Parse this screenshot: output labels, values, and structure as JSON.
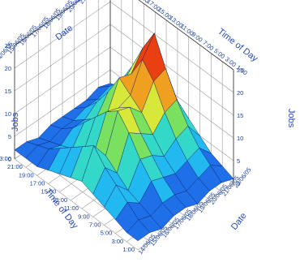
{
  "chart_data": {
    "type": "surface3d",
    "title": "",
    "axes": {
      "date": {
        "label": "Date",
        "ticks": [
          "14/06/05",
          "15/06/05",
          "16/06/05",
          "17/06/05",
          "18/06/05",
          "19/06/05",
          "20/06/05",
          "21/06/05",
          "22/06/05"
        ]
      },
      "time": {
        "label": "Time of Day",
        "ticks": [
          "1:00",
          "3:00",
          "5:00",
          "7:00",
          "9:00",
          "11:00",
          "13:00",
          "15:00",
          "17:00",
          "19:00",
          "21:00",
          "23:00"
        ]
      },
      "jobs": {
        "label": "Jobs",
        "ticks": [
          0,
          5,
          10,
          15,
          20,
          25
        ],
        "range": [
          0,
          25
        ]
      }
    },
    "front_time_ticks": [
      "1:00",
      "3:00",
      "5:00",
      "7:00",
      "9:00",
      "11:00",
      "13:00",
      "15:00",
      "17:00",
      "19:00",
      "21:00",
      "23:00"
    ],
    "right_date_ticks": [
      "14/06/05",
      "15/06/05",
      "16/06/05",
      "17/06/05",
      "18/06/05",
      "19/06/05",
      "20/06/05",
      "21/06/05",
      "22/06/05"
    ],
    "back_date_ticks": [
      "14/06/05",
      "15/06/05",
      "16/06/05",
      "17/06/05",
      "18/06/05",
      "19/06/05",
      "20/06/05",
      "21/06/05",
      "22/06/05"
    ],
    "back_time_ticks": [
      "23:00",
      "21:00",
      "19:00",
      "17:00",
      "15:00",
      "13:00",
      "11:00",
      "9:00",
      "7:00",
      "5:00",
      "3:00",
      "1:00"
    ],
    "z_ticks": [
      0,
      5,
      10,
      15,
      20,
      25
    ],
    "colormap": [
      "#1a2fd0",
      "#1f6fe8",
      "#22b8f0",
      "#33d8c8",
      "#7ae060",
      "#d8e83a",
      "#f0a020",
      "#e84010",
      "#c01808"
    ],
    "grid": "on",
    "z_values": [
      [
        2,
        2,
        3,
        4,
        5,
        6,
        5,
        4,
        3,
        2,
        2,
        2
      ],
      [
        2,
        3,
        5,
        7,
        9,
        12,
        10,
        8,
        6,
        4,
        3,
        2
      ],
      [
        1,
        2,
        3,
        4,
        6,
        8,
        7,
        5,
        4,
        3,
        2,
        1
      ],
      [
        2,
        3,
        6,
        9,
        13,
        16,
        14,
        11,
        8,
        5,
        3,
        2
      ],
      [
        2,
        3,
        5,
        8,
        11,
        15,
        13,
        10,
        7,
        5,
        3,
        2
      ],
      [
        1,
        2,
        4,
        6,
        9,
        12,
        14,
        16,
        11,
        7,
        4,
        2
      ],
      [
        2,
        3,
        5,
        8,
        12,
        17,
        20,
        15,
        10,
        6,
        4,
        2
      ],
      [
        2,
        4,
        6,
        9,
        13,
        18,
        24,
        19,
        13,
        8,
        5,
        3
      ],
      [
        1,
        2,
        3,
        5,
        7,
        9,
        11,
        9,
        7,
        5,
        3,
        2
      ]
    ]
  }
}
